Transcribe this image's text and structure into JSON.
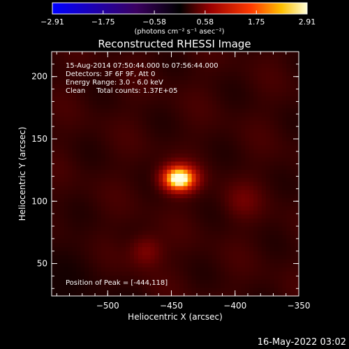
{
  "chart_data": {
    "type": "heatmap",
    "title": "Reconstructed RHESSI Image",
    "xlabel": "Heliocentric X (arcsec)",
    "ylabel": "Heliocentric Y (arcsec)",
    "xlim": [
      -544,
      -350
    ],
    "ylim": [
      24,
      220
    ],
    "x_ticks": [
      -500,
      -450,
      -400,
      -350
    ],
    "y_ticks": [
      50,
      100,
      150,
      200
    ],
    "x_tick_labels": [
      "−500",
      "−450",
      "−400",
      "−350"
    ],
    "y_tick_labels": [
      "50",
      "100",
      "150",
      "200"
    ],
    "colorbar": {
      "min": -2.91,
      "max": 2.91,
      "ticks": [
        -2.91,
        -1.75,
        -0.58,
        0.58,
        1.75,
        2.91
      ],
      "tick_labels": [
        "−2.91",
        "−1.75",
        "−0.58",
        "0.58",
        "1.75",
        "2.91"
      ],
      "unit_label": "(photons cm⁻² s⁻¹ asec⁻²)"
    },
    "annotations": [
      "15-Aug-2014 07:50:44.000 to 07:56:44.000",
      "Detectors: 3F 6F 9F, Att 0",
      "Energy Range: 3.0 - 6.0 keV",
      "Clean     Total counts: 1.37E+05"
    ],
    "peak_label": "Position of Peak = [-444,118]",
    "peak": {
      "x": -444,
      "y": 118,
      "value": 2.91
    },
    "sources": [
      {
        "x": -444,
        "y": 118,
        "amp": 2.91,
        "sx": 9,
        "sy": 7
      },
      {
        "x": -470,
        "y": 60,
        "amp": 0.55,
        "sx": 9,
        "sy": 9
      },
      {
        "x": -395,
        "y": 100,
        "amp": 0.3,
        "sx": 10,
        "sy": 10
      }
    ],
    "background": {
      "base": 0.35,
      "ripple": 0.12
    },
    "timestamp": "16-May-2022 03:02"
  }
}
